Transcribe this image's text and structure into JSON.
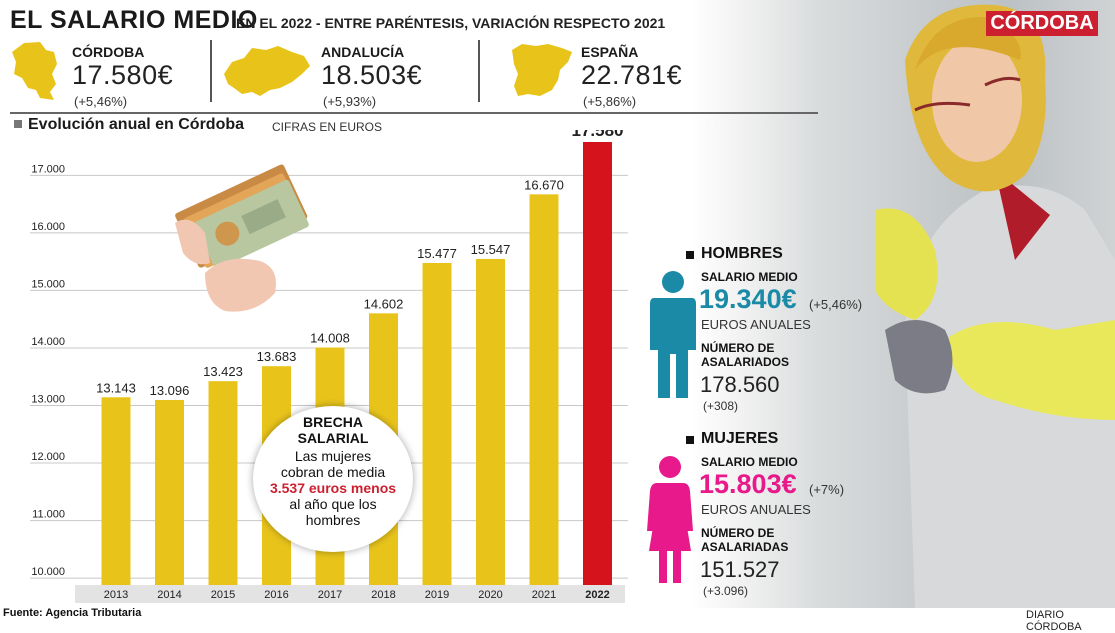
{
  "header": {
    "title": "EL SALARIO MEDIO",
    "subtitle": "EN EL 2022 - ENTRE PARÉNTESIS, VARIACIÓN RESPECTO 2021"
  },
  "brand": "CÓRDOBA",
  "regions": [
    {
      "name": "CÓRDOBA",
      "value": "17.580€",
      "variation": "(+5,46%)"
    },
    {
      "name": "ANDALUCÍA",
      "value": "18.503€",
      "variation": "(+5,93%)"
    },
    {
      "name": "ESPAÑA",
      "value": "22.781€",
      "variation": "(+5,86%)"
    }
  ],
  "evolution": {
    "title": "Evolución anual en Córdoba",
    "units": "CIFRAS EN EUROS"
  },
  "chart_data": {
    "type": "bar",
    "categories": [
      "2013",
      "2014",
      "2015",
      "2016",
      "2017",
      "2018",
      "2019",
      "2020",
      "2021",
      "2022"
    ],
    "values": [
      13143,
      13096,
      13423,
      13683,
      14008,
      14602,
      15477,
      15547,
      16670,
      17580
    ],
    "value_labels": [
      "13.143",
      "13.096",
      "13.423",
      "13.683",
      "14.008",
      "14.602",
      "15.477",
      "15.547",
      "16.670",
      "17.580"
    ],
    "yticks": [
      10000,
      11000,
      12000,
      13000,
      14000,
      15000,
      16000,
      17000
    ],
    "ytick_labels": [
      "10.000",
      "11.000",
      "12.000",
      "13.000",
      "14.000",
      "15.000",
      "16.000",
      "17.000"
    ],
    "ylim": [
      9880,
      17580
    ],
    "colors": {
      "bar": "#e8c41b",
      "highlight": "#d4131c",
      "axis_bg": "#e3e3e3"
    },
    "highlight_index": 9
  },
  "gap": {
    "title_line1": "BRECHA",
    "title_line2": "SALARIAL",
    "line1": "Las mujeres",
    "line2": "cobran de media",
    "highlight": "3.537 euros menos",
    "line3": "al año que los",
    "line4": "hombres"
  },
  "men": {
    "title": "HOMBRES",
    "salary_label": "SALARIO MEDIO",
    "salary": "19.340€",
    "variation": "(+5,46%)",
    "units": "EUROS ANUALES",
    "count_label_1": "NÚMERO DE",
    "count_label_2": "ASALARIADOS",
    "count": "178.560",
    "count_var": "(+308)",
    "color": "#1a8aa6"
  },
  "women": {
    "title": "MUJERES",
    "salary_label": "SALARIO MEDIO",
    "salary": "15.803€",
    "variation": "(+7%)",
    "units": "EUROS ANUALES",
    "count_label_1": "NÚMERO DE",
    "count_label_2": "ASALARIADAS",
    "count": "151.527",
    "count_var": "(+3.096)",
    "color": "#e8198a"
  },
  "footer": {
    "source": "Fuente: Agencia Tributaria",
    "credit": "DIARIO CÓRDOBA"
  }
}
